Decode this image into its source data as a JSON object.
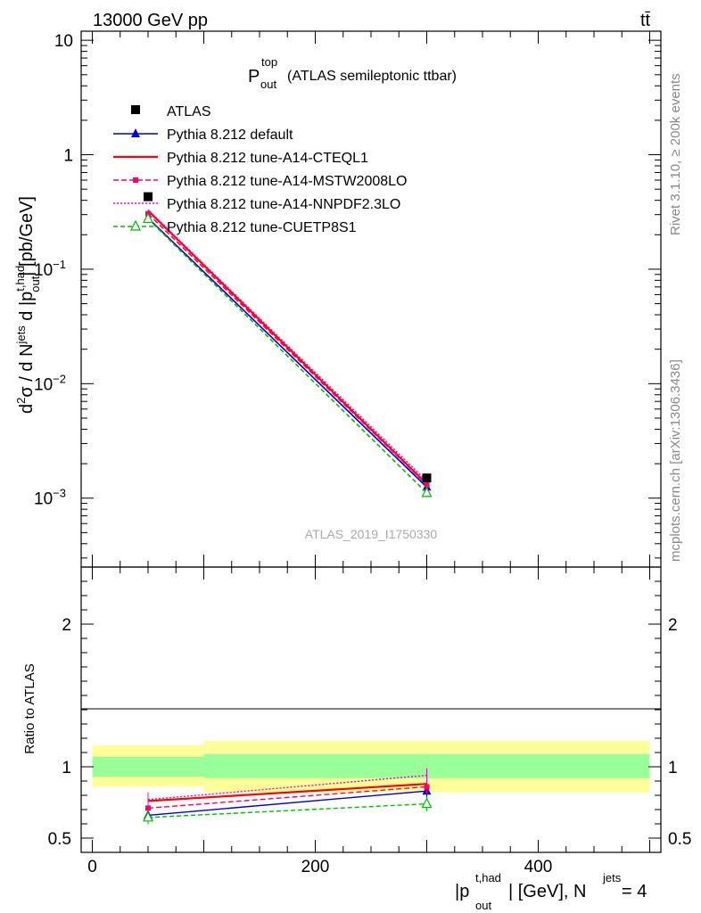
{
  "header": {
    "energy_label": "13000 GeV pp",
    "process_label": "tt̄"
  },
  "side_text": {
    "rivet": "Rivet 3.1.10, ≥ 200k events",
    "mcplots": "mcplots.cern.ch [arXiv:1306.3436]"
  },
  "watermark": "ATLAS_2019_I1750330",
  "chart_data": [
    {
      "type": "line",
      "panel": "main",
      "title": {
        "main": "P",
        "sup": "top",
        "sub": "out",
        "rest": "(ATLAS semileptonic ttbar)"
      },
      "ylabel": "d²σ / d N^jets d |p_out^t,had| [pb/GeV]",
      "yscale": "log",
      "ylim": [
        0.00025,
        12
      ],
      "xlim": [
        -10,
        510
      ],
      "y_ticks": [
        {
          "value": 10,
          "base": "10",
          "exp": ""
        },
        {
          "value": 1,
          "base": "1",
          "exp": ""
        },
        {
          "value": 0.1,
          "base": "10",
          "exp": "−1"
        },
        {
          "value": 0.01,
          "base": "10",
          "exp": "−2"
        },
        {
          "value": 0.001,
          "base": "10",
          "exp": "−3"
        }
      ],
      "x": [
        50,
        300
      ],
      "data": {
        "name": "ATLAS",
        "values": [
          0.43,
          0.0015
        ]
      },
      "series": [
        {
          "name": "Pythia 8.212 default",
          "color": "#0000cc",
          "dash": "",
          "marker": "triangle-filled",
          "values": [
            0.28,
            0.00125
          ]
        },
        {
          "name": "Pythia 8.212 tune-A14-CTEQL1",
          "color": "#ff0000",
          "dash": "",
          "marker": "none",
          "values": [
            0.325,
            0.00133
          ]
        },
        {
          "name": "Pythia 8.212 tune-A14-MSTW2008LO",
          "color": "#ff0066",
          "dash": "6,3",
          "marker": "square-filled",
          "values": [
            0.305,
            0.00131
          ]
        },
        {
          "name": "Pythia 8.212 tune-A14-NNPDF2.3LO",
          "color": "#ff00cc",
          "dash": "2,2",
          "marker": "none",
          "values": [
            0.33,
            0.00141
          ]
        },
        {
          "name": "Pythia 8.212 tune-CUETP8S1",
          "color": "#00bb00",
          "dash": "5,3",
          "marker": "triangle-open",
          "values": [
            0.275,
            0.00111
          ]
        }
      ]
    },
    {
      "type": "line",
      "panel": "ratio",
      "ylabel": "Ratio to ATLAS",
      "ylim": [
        0.4,
        2.4
      ],
      "xlim": [
        -10,
        510
      ],
      "y_ticks": [
        0.5,
        1,
        2
      ],
      "x_ticks": [
        0,
        200,
        400
      ],
      "xlabel": {
        "pre": "|p",
        "sup": "t,had",
        "sub": "out",
        "mid": "| [GeV], N",
        "sup2": "jets",
        "post": " = 4"
      },
      "bins": [
        {
          "x0": 0,
          "x1": 100,
          "band_inner": [
            0.93,
            1.07
          ],
          "band_outer": [
            0.86,
            1.15
          ]
        },
        {
          "x0": 100,
          "x1": 500,
          "band_inner": [
            0.92,
            1.09
          ],
          "band_outer": [
            0.82,
            1.18
          ]
        }
      ],
      "x": [
        50,
        300
      ],
      "series": [
        {
          "name": "Pythia 8.212 default",
          "values": [
            0.66,
            0.83
          ]
        },
        {
          "name": "Pythia 8.212 tune-A14-CTEQL1",
          "values": [
            0.76,
            0.88
          ]
        },
        {
          "name": "Pythia 8.212 tune-A14-MSTW2008LO",
          "values": [
            0.71,
            0.86
          ]
        },
        {
          "name": "Pythia 8.212 tune-A14-NNPDF2.3LO",
          "values": [
            0.77,
            0.94
          ]
        },
        {
          "name": "Pythia 8.212 tune-CUETP8S1",
          "values": [
            0.645,
            0.74
          ]
        }
      ]
    }
  ]
}
